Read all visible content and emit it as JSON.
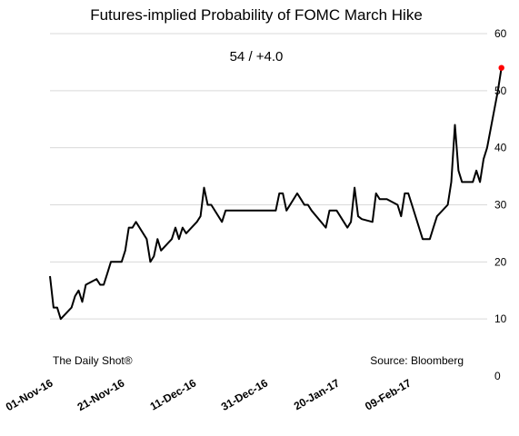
{
  "chart_data": {
    "type": "line",
    "title": "Futures-implied Probability of FOMC March Hike",
    "annotation": "54  /  +4.0",
    "credit_left": "The Daily Shot®",
    "credit_right": "Source: Bloomberg",
    "xlabel": "",
    "ylabel": "",
    "ylim": [
      0,
      60
    ],
    "yticks": [
      "0",
      "10",
      "20",
      "30",
      "40",
      "50",
      "60"
    ],
    "y_axis_side": "right",
    "grid": true,
    "xlim": [
      "2016-11-01",
      "2017-03-02"
    ],
    "xticks": [
      {
        "date": "2016-11-01",
        "label": "01-Nov-16"
      },
      {
        "date": "2016-11-21",
        "label": "21-Nov-16"
      },
      {
        "date": "2016-12-11",
        "label": "11-Dec-16"
      },
      {
        "date": "2016-12-31",
        "label": "31-Dec-16"
      },
      {
        "date": "2017-01-20",
        "label": "20-Jan-17"
      },
      {
        "date": "2017-02-09",
        "label": "09-Feb-17"
      }
    ],
    "line_color": "#000000",
    "marker_color": "#ff0000",
    "series": [
      {
        "points": [
          [
            "2016-11-01",
            17.5
          ],
          [
            "2016-11-02",
            12
          ],
          [
            "2016-11-03",
            12
          ],
          [
            "2016-11-04",
            10
          ],
          [
            "2016-11-07",
            12
          ],
          [
            "2016-11-08",
            14
          ],
          [
            "2016-11-09",
            15
          ],
          [
            "2016-11-10",
            13
          ],
          [
            "2016-11-11",
            16
          ],
          [
            "2016-11-14",
            17
          ],
          [
            "2016-11-15",
            16
          ],
          [
            "2016-11-16",
            16
          ],
          [
            "2016-11-17",
            18
          ],
          [
            "2016-11-18",
            20
          ],
          [
            "2016-11-21",
            20
          ],
          [
            "2016-11-22",
            22
          ],
          [
            "2016-11-23",
            26
          ],
          [
            "2016-11-24",
            26
          ],
          [
            "2016-11-25",
            27
          ],
          [
            "2016-11-28",
            24
          ],
          [
            "2016-11-29",
            20
          ],
          [
            "2016-11-30",
            21
          ],
          [
            "2016-12-01",
            24
          ],
          [
            "2016-12-02",
            22
          ],
          [
            "2016-12-05",
            24
          ],
          [
            "2016-12-06",
            26
          ],
          [
            "2016-12-07",
            24
          ],
          [
            "2016-12-08",
            26
          ],
          [
            "2016-12-09",
            25
          ],
          [
            "2016-12-12",
            27
          ],
          [
            "2016-12-13",
            28
          ],
          [
            "2016-12-14",
            33
          ],
          [
            "2016-12-15",
            30
          ],
          [
            "2016-12-16",
            30
          ],
          [
            "2016-12-19",
            27
          ],
          [
            "2016-12-20",
            29
          ],
          [
            "2017-01-02",
            29
          ],
          [
            "2017-01-03",
            29
          ],
          [
            "2017-01-04",
            32
          ],
          [
            "2017-01-05",
            32
          ],
          [
            "2017-01-06",
            29
          ],
          [
            "2017-01-09",
            32
          ],
          [
            "2017-01-10",
            31
          ],
          [
            "2017-01-11",
            30
          ],
          [
            "2017-01-12",
            30
          ],
          [
            "2017-01-13",
            29
          ],
          [
            "2017-01-17",
            26
          ],
          [
            "2017-01-18",
            29
          ],
          [
            "2017-01-19",
            29
          ],
          [
            "2017-01-20",
            29
          ],
          [
            "2017-01-23",
            26
          ],
          [
            "2017-01-24",
            27
          ],
          [
            "2017-01-25",
            33
          ],
          [
            "2017-01-26",
            28
          ],
          [
            "2017-01-27",
            27.5
          ],
          [
            "2017-01-30",
            27
          ],
          [
            "2017-01-31",
            32
          ],
          [
            "2017-02-01",
            31
          ],
          [
            "2017-02-02",
            31
          ],
          [
            "2017-02-03",
            31
          ],
          [
            "2017-02-06",
            30
          ],
          [
            "2017-02-07",
            28
          ],
          [
            "2017-02-08",
            32
          ],
          [
            "2017-02-09",
            32
          ],
          [
            "2017-02-10",
            30
          ],
          [
            "2017-02-13",
            24
          ],
          [
            "2017-02-14",
            24
          ],
          [
            "2017-02-15",
            24
          ],
          [
            "2017-02-16",
            26
          ],
          [
            "2017-02-17",
            28
          ],
          [
            "2017-02-20",
            30
          ],
          [
            "2017-02-21",
            34
          ],
          [
            "2017-02-22",
            44
          ],
          [
            "2017-02-23",
            36
          ],
          [
            "2017-02-24",
            34
          ],
          [
            "2017-02-27",
            34
          ],
          [
            "2017-02-28",
            36
          ],
          [
            "2017-03-01",
            34
          ],
          [
            "2017-03-02",
            38
          ],
          [
            "2017-03-03",
            40
          ],
          [
            "2017-03-06",
            50
          ],
          [
            "2017-03-07",
            54
          ]
        ]
      }
    ]
  }
}
